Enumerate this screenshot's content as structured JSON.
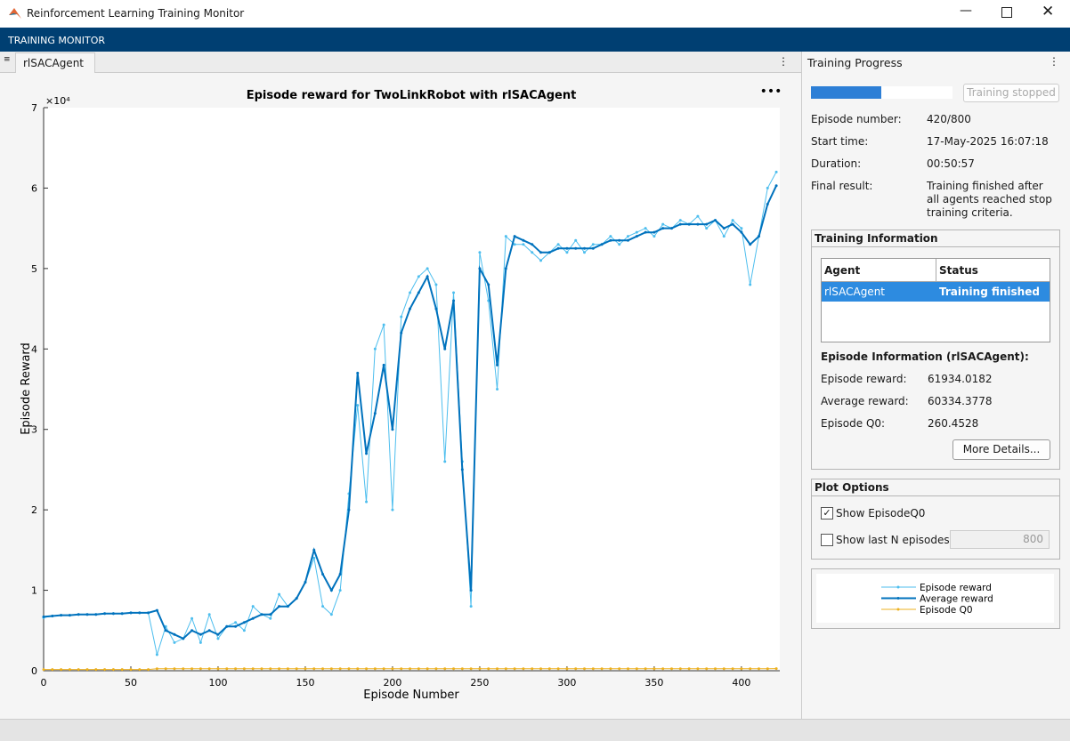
{
  "window": {
    "title": "Reinforcement Learning Training Monitor"
  },
  "toolstrip": {
    "title": "TRAINING MONITOR"
  },
  "tab": {
    "label": "rlSACAgent"
  },
  "chart_data": {
    "type": "line",
    "title": "Episode reward for TwoLinkRobot with rlSACAgent",
    "x_label": "Episode Number",
    "y_label": "Episode Reward",
    "y_exponent": "×10⁴",
    "x": [
      0,
      5,
      10,
      15,
      20,
      25,
      30,
      35,
      40,
      45,
      50,
      55,
      60,
      65,
      70,
      75,
      80,
      85,
      90,
      95,
      100,
      105,
      110,
      115,
      120,
      125,
      130,
      135,
      140,
      145,
      150,
      155,
      160,
      165,
      170,
      175,
      180,
      185,
      190,
      195,
      200,
      205,
      210,
      215,
      220,
      225,
      230,
      235,
      240,
      245,
      250,
      255,
      260,
      265,
      270,
      275,
      280,
      285,
      290,
      295,
      300,
      305,
      310,
      315,
      320,
      325,
      330,
      335,
      340,
      345,
      350,
      355,
      360,
      365,
      370,
      375,
      380,
      385,
      390,
      395,
      400,
      405,
      410,
      415,
      420
    ],
    "xlim": [
      0,
      422
    ],
    "xticks": [
      0,
      50,
      100,
      150,
      200,
      250,
      300,
      350,
      400
    ],
    "ylim": [
      0,
      70000
    ],
    "yticks": [
      0,
      {
        "value": 10000,
        "label": "1"
      },
      {
        "value": 20000,
        "label": "2"
      },
      {
        "value": 30000,
        "label": "3"
      },
      {
        "value": 40000,
        "label": "4"
      },
      {
        "value": 50000,
        "label": "5"
      },
      {
        "value": 60000,
        "label": "6"
      },
      {
        "value": 70000,
        "label": "7"
      }
    ],
    "grid": false,
    "series": [
      {
        "name": "Episode reward",
        "color": "#4dbeee",
        "width": 1,
        "values": [
          6600,
          6800,
          6900,
          6900,
          7000,
          7000,
          7000,
          7100,
          7100,
          7100,
          7200,
          7200,
          7200,
          2000,
          5500,
          3500,
          4000,
          6500,
          3500,
          7000,
          4000,
          5500,
          6000,
          5000,
          8000,
          7000,
          6500,
          9500,
          8000,
          9000,
          11000,
          14000,
          8000,
          7000,
          10000,
          22000,
          33000,
          21000,
          40000,
          43000,
          20000,
          44000,
          47000,
          49000,
          50000,
          48000,
          26000,
          47000,
          26000,
          8000,
          52000,
          46000,
          35000,
          54000,
          53000,
          53000,
          52000,
          51000,
          52000,
          53000,
          52000,
          53500,
          52000,
          53000,
          53000,
          54000,
          53000,
          54000,
          54500,
          55000,
          54000,
          55500,
          55000,
          56000,
          55500,
          56500,
          55000,
          56000,
          54000,
          56000,
          55000,
          48000,
          54000,
          60000,
          62000
        ]
      },
      {
        "name": "Average reward",
        "color": "#0072bd",
        "width": 2,
        "values": [
          6700,
          6800,
          6900,
          6900,
          7000,
          7000,
          7000,
          7100,
          7100,
          7100,
          7200,
          7200,
          7200,
          7500,
          5000,
          4500,
          4000,
          5000,
          4500,
          5000,
          4500,
          5500,
          5500,
          6000,
          6500,
          7000,
          7000,
          8000,
          8000,
          9000,
          11000,
          15000,
          12000,
          10000,
          12000,
          20000,
          37000,
          27000,
          32000,
          38000,
          30000,
          42000,
          45000,
          47000,
          49000,
          45000,
          40000,
          46000,
          25000,
          10000,
          50000,
          48000,
          38000,
          50000,
          54000,
          53500,
          53000,
          52000,
          52000,
          52500,
          52500,
          52500,
          52500,
          52500,
          53000,
          53500,
          53500,
          53500,
          54000,
          54500,
          54500,
          55000,
          55000,
          55500,
          55500,
          55500,
          55500,
          56000,
          55000,
          55500,
          54500,
          53000,
          54000,
          58000,
          60300
        ]
      },
      {
        "name": "Episode Q0",
        "color": "#edb120",
        "width": 1,
        "values": [
          150,
          150,
          150,
          150,
          150,
          150,
          150,
          150,
          150,
          150,
          150,
          150,
          150,
          250,
          250,
          250,
          250,
          250,
          250,
          250,
          250,
          250,
          250,
          250,
          250,
          250,
          250,
          250,
          250,
          250,
          250,
          250,
          250,
          250,
          250,
          250,
          250,
          250,
          250,
          250,
          250,
          250,
          250,
          250,
          250,
          250,
          250,
          250,
          250,
          250,
          250,
          250,
          250,
          250,
          250,
          250,
          250,
          250,
          250,
          250,
          250,
          250,
          250,
          250,
          250,
          250,
          250,
          250,
          250,
          250,
          250,
          250,
          250,
          250,
          250,
          250,
          250,
          250,
          250,
          250,
          250,
          250,
          250,
          250,
          260.4528
        ]
      }
    ]
  },
  "progress": {
    "title": "Training Progress",
    "button": "Training stopped",
    "fields": [
      {
        "label": "Episode number:",
        "value": "420/800"
      },
      {
        "label": "Start time:",
        "value": "17-May-2025 16:07:18"
      },
      {
        "label": "Duration:",
        "value": "00:50:57"
      },
      {
        "label": "Final result:",
        "value": "Training finished after all agents reached stop training criteria."
      }
    ]
  },
  "training_info": {
    "title": "Training Information",
    "table": {
      "columns": [
        "Agent",
        "Status"
      ],
      "rows": [
        [
          "rlSACAgent",
          "Training finished"
        ]
      ]
    },
    "episode_info": {
      "title": "Episode Information (rlSACAgent):",
      "fields": [
        {
          "label": "Episode reward:",
          "value": 61934.0182
        },
        {
          "label": "Average reward:",
          "value": 60334.3778
        },
        {
          "label": "Episode Q0:",
          "value": 260.4528
        }
      ]
    },
    "button": "More Details..."
  },
  "plot_options": {
    "title": "Plot Options",
    "show_q0": {
      "label": "Show EpisodeQ0",
      "checked": true
    },
    "show_last_n": {
      "label": "Show last N episodes",
      "checked": false,
      "value": 800
    }
  }
}
